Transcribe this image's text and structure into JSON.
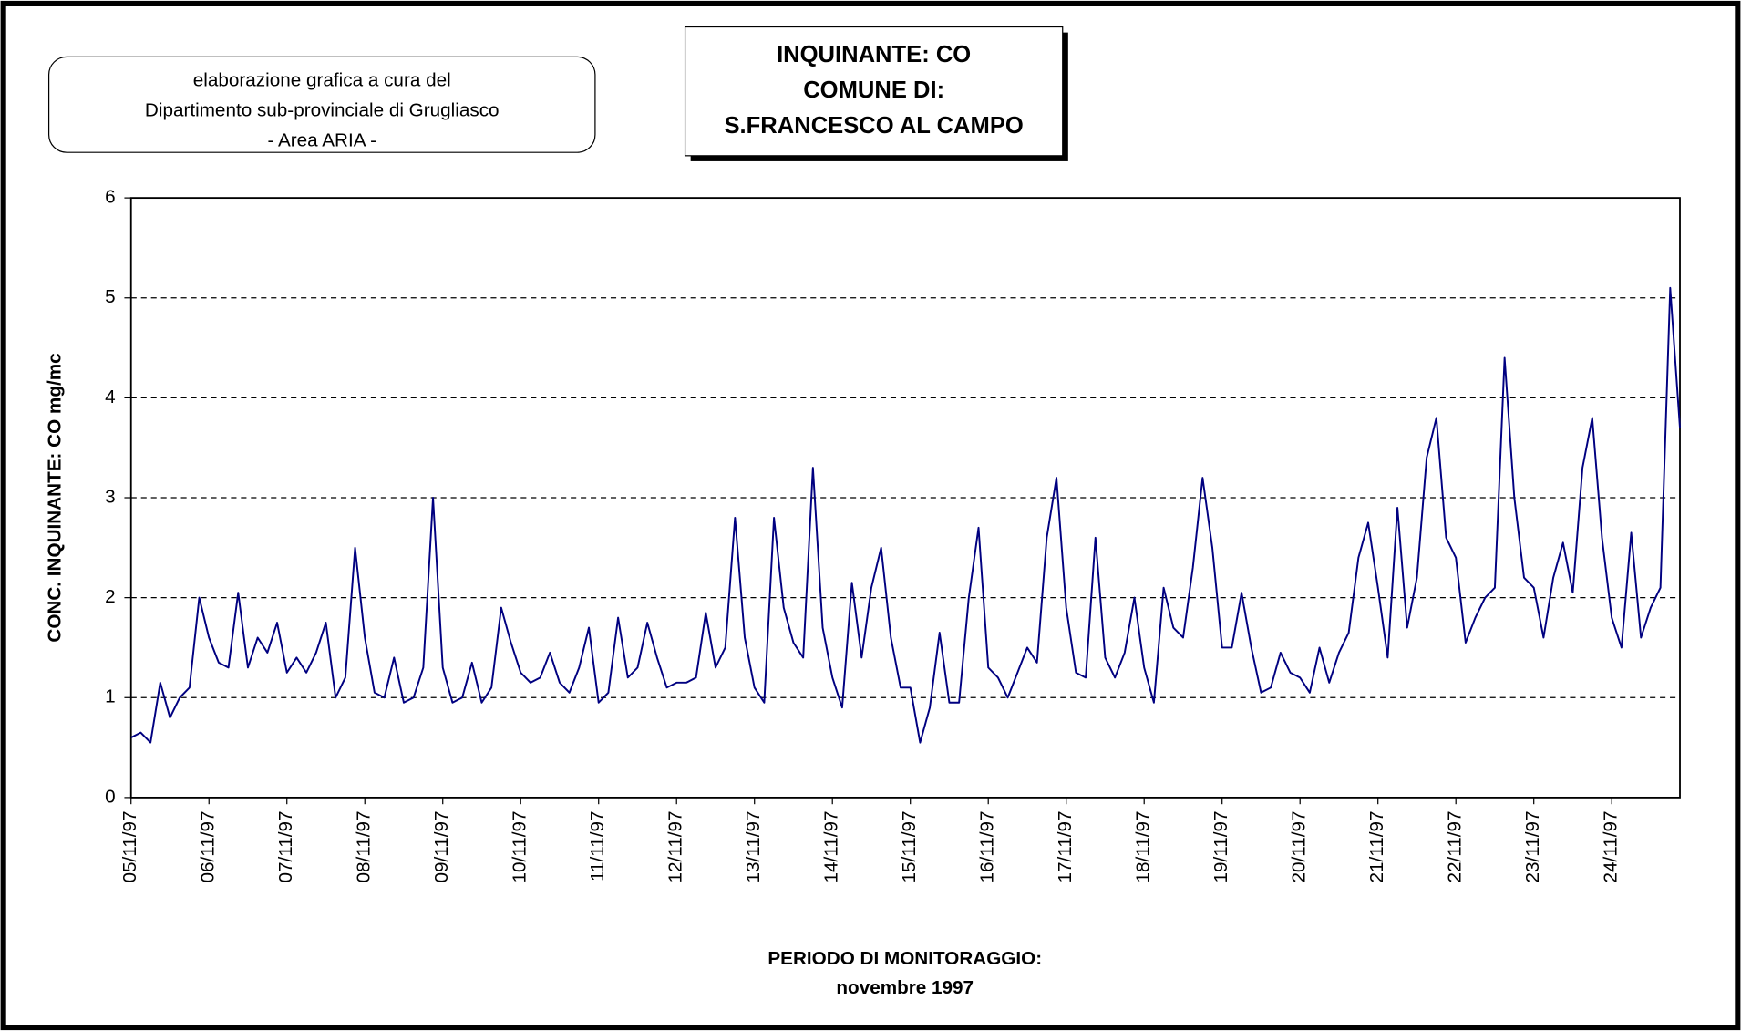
{
  "chart_data": {
    "type": "line",
    "title_lines": [
      "INQUINANTE: CO",
      "COMUNE DI:",
      "S.FRANCESCO AL CAMPO"
    ],
    "note_lines": [
      "elaborazione grafica a cura del",
      "Dipartimento sub-provinciale di Grugliasco",
      "- Area ARIA -"
    ],
    "x_label_lines": [
      "PERIODO DI MONITORAGGIO:",
      "novembre 1997"
    ],
    "y_label": "CONC. INQUINANTE: CO mg/mc",
    "categories": [
      "05/11/97",
      null,
      null,
      null,
      null,
      null,
      null,
      null,
      "06/11/97",
      null,
      null,
      null,
      null,
      null,
      null,
      null,
      "07/11/97",
      null,
      null,
      null,
      null,
      null,
      null,
      null,
      "08/11/97",
      null,
      null,
      null,
      null,
      null,
      null,
      null,
      "09/11/97",
      null,
      null,
      null,
      null,
      null,
      null,
      null,
      "10/11/97",
      null,
      null,
      null,
      null,
      null,
      null,
      null,
      "11/11/97",
      null,
      null,
      null,
      null,
      null,
      null,
      null,
      "12/11/97",
      null,
      null,
      null,
      null,
      null,
      null,
      null,
      "13/11/97",
      null,
      null,
      null,
      null,
      null,
      null,
      null,
      "14/11/97",
      null,
      null,
      null,
      null,
      null,
      null,
      null,
      "15/11/97",
      null,
      null,
      null,
      null,
      null,
      null,
      null,
      "16/11/97",
      null,
      null,
      null,
      null,
      null,
      null,
      null,
      "17/11/97",
      null,
      null,
      null,
      null,
      null,
      null,
      null,
      "18/11/97",
      null,
      null,
      null,
      null,
      null,
      null,
      null,
      "19/11/97",
      null,
      null,
      null,
      null,
      null,
      null,
      null,
      "20/11/97",
      null,
      null,
      null,
      null,
      null,
      null,
      null,
      "21/11/97",
      null,
      null,
      null,
      null,
      null,
      null,
      null,
      "22/11/97",
      null,
      null,
      null,
      null,
      null,
      null,
      null,
      "23/11/97",
      null,
      null,
      null,
      null,
      null,
      null,
      null,
      "24/11/97",
      null,
      null,
      null,
      null,
      null,
      null,
      null
    ],
    "series": [
      {
        "name": "CO",
        "color": "#000080",
        "values": [
          0.6,
          0.65,
          0.55,
          1.15,
          0.8,
          1.0,
          1.1,
          2.0,
          1.6,
          1.35,
          1.3,
          2.05,
          1.3,
          1.6,
          1.45,
          1.75,
          1.25,
          1.4,
          1.25,
          1.45,
          1.75,
          1.0,
          1.2,
          2.5,
          1.6,
          1.05,
          1.0,
          1.4,
          0.95,
          1.0,
          1.3,
          3.0,
          1.3,
          0.95,
          1.0,
          1.35,
          0.95,
          1.1,
          1.9,
          1.55,
          1.25,
          1.15,
          1.2,
          1.45,
          1.15,
          1.05,
          1.3,
          1.7,
          0.95,
          1.05,
          1.8,
          1.2,
          1.3,
          1.75,
          1.4,
          1.1,
          1.15,
          1.15,
          1.2,
          1.85,
          1.3,
          1.5,
          2.8,
          1.6,
          1.1,
          0.95,
          2.8,
          1.9,
          1.55,
          1.4,
          3.3,
          1.7,
          1.2,
          0.9,
          2.15,
          1.4,
          2.1,
          2.5,
          1.6,
          1.1,
          1.1,
          0.55,
          0.9,
          1.65,
          0.95,
          0.95,
          2.0,
          2.7,
          1.3,
          1.2,
          1.0,
          1.25,
          1.5,
          1.35,
          2.6,
          3.2,
          1.9,
          1.25,
          1.2,
          2.6,
          1.4,
          1.2,
          1.45,
          2.0,
          1.3,
          0.95,
          2.1,
          1.7,
          1.6,
          2.3,
          3.2,
          2.5,
          1.5,
          1.5,
          2.05,
          1.5,
          1.05,
          1.1,
          1.45,
          1.25,
          1.2,
          1.05,
          1.5,
          1.15,
          1.45,
          1.65,
          2.4,
          2.75,
          2.1,
          1.4,
          2.9,
          1.7,
          2.2,
          3.4,
          3.8,
          2.6,
          2.4,
          1.55,
          1.8,
          2.0,
          2.1,
          4.4,
          3.0,
          2.2,
          2.1,
          1.6,
          2.2,
          2.55,
          2.05,
          3.3,
          3.8,
          2.6,
          1.8,
          1.5,
          2.65,
          1.6,
          1.9,
          2.1,
          5.1,
          3.7
        ]
      }
    ],
    "ylim": [
      0,
      6
    ],
    "yticks": [
      0,
      1,
      2,
      3,
      4,
      5,
      6
    ],
    "grid": true
  }
}
